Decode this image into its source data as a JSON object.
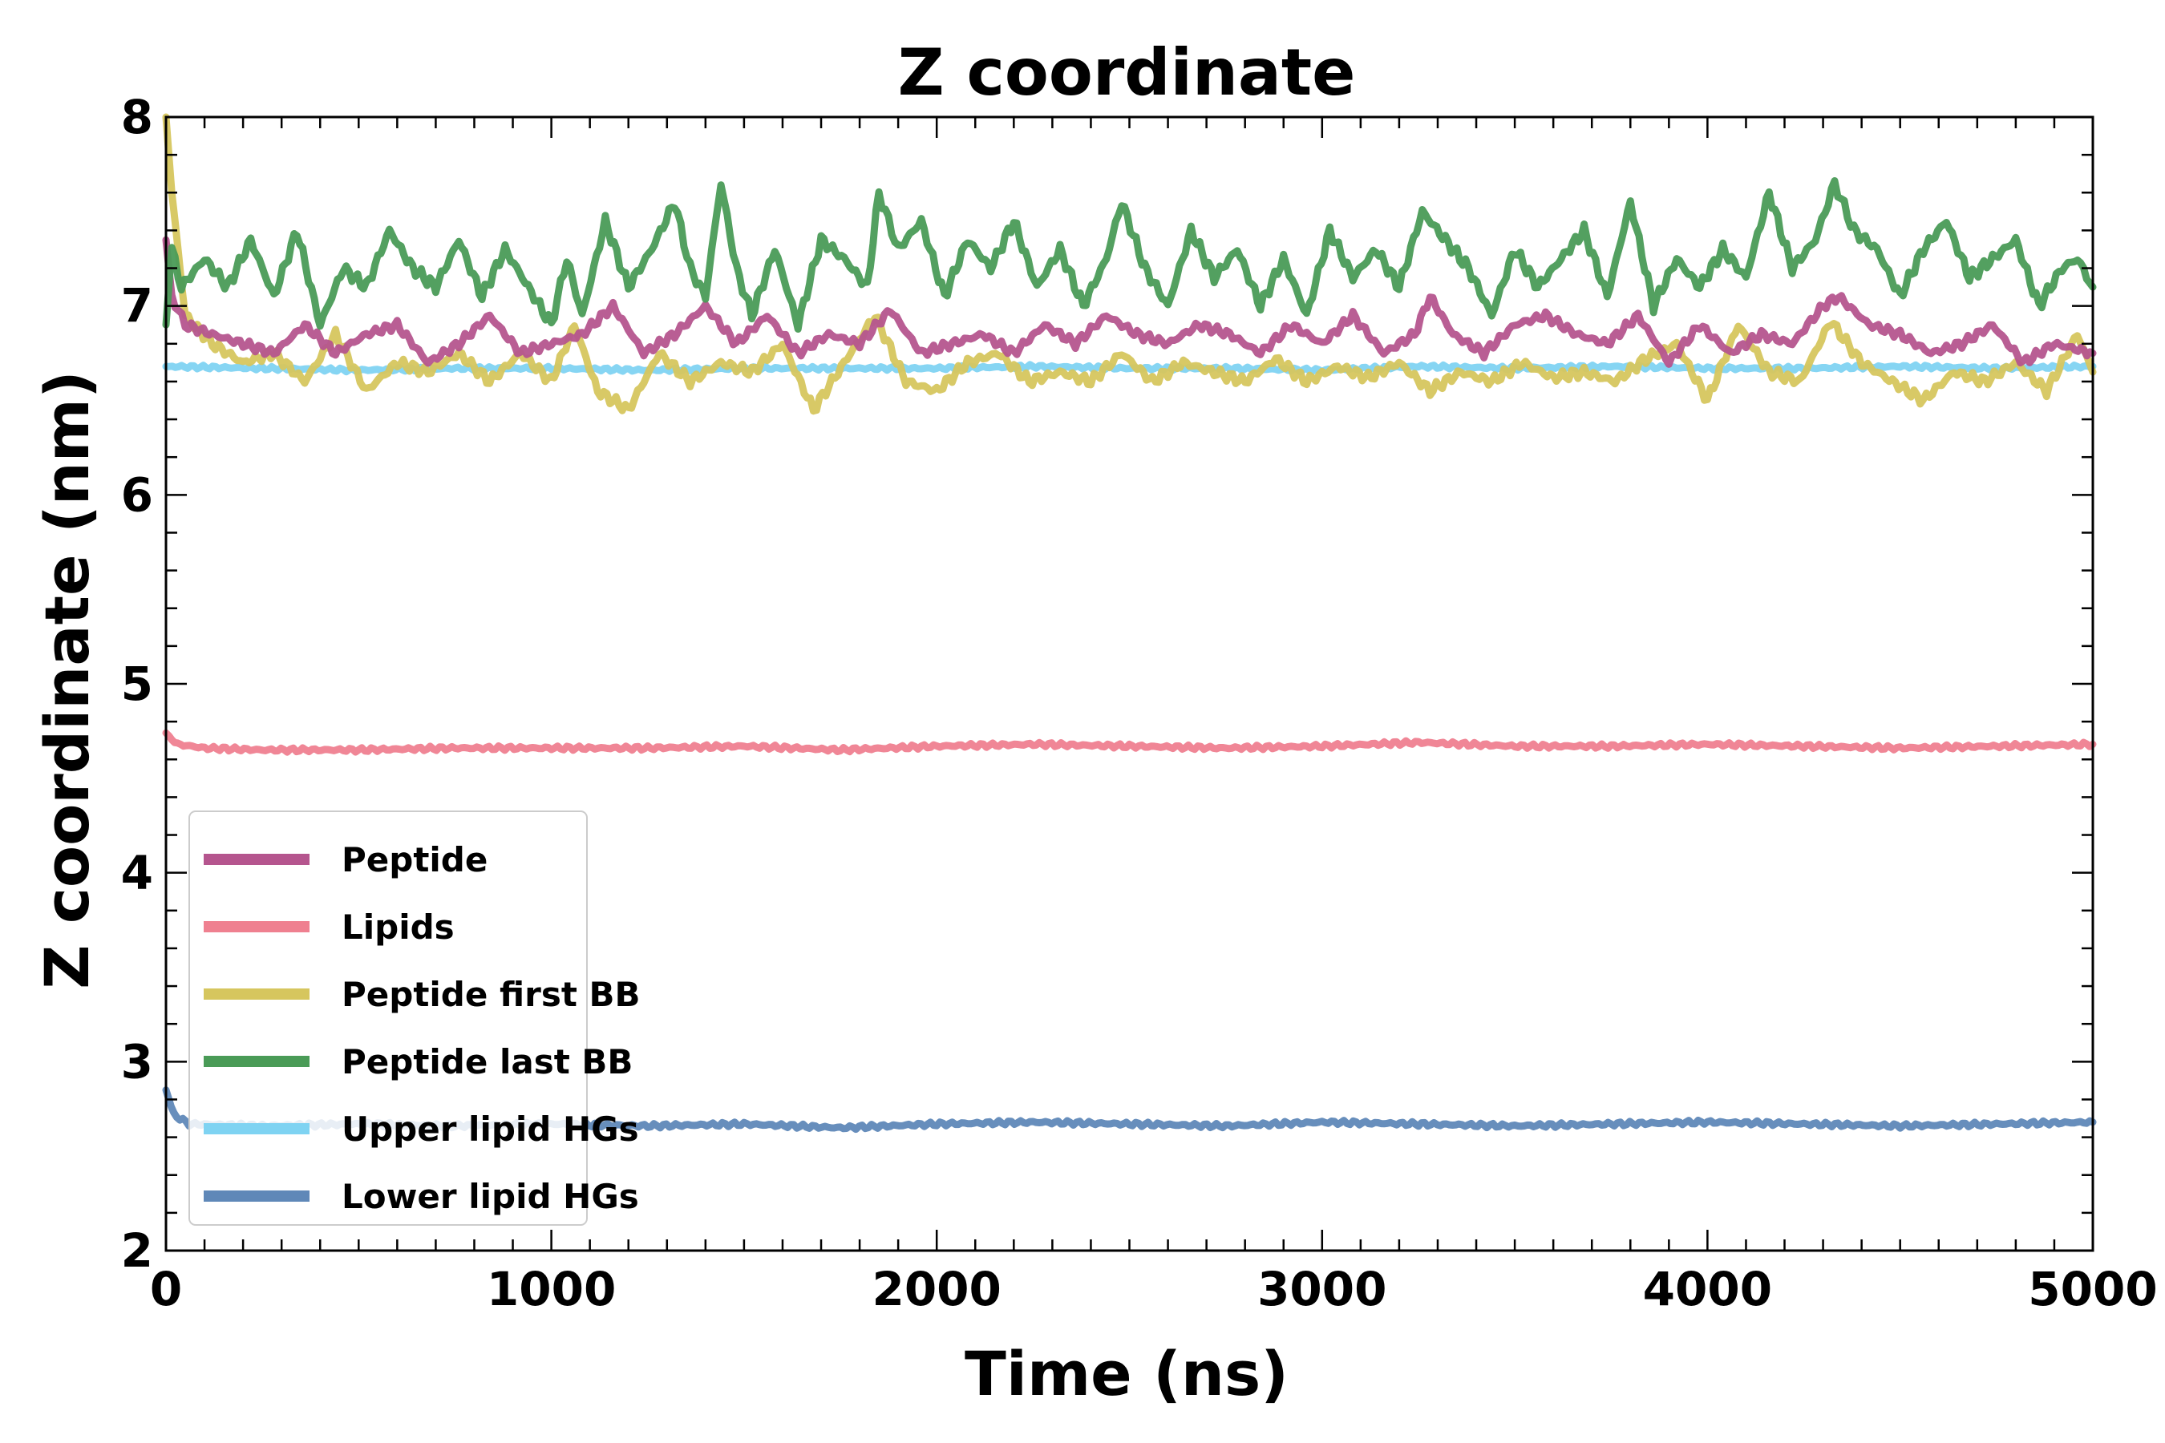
{
  "chart_data": {
    "type": "line",
    "title": "Z coordinate",
    "xlabel": "Time (ns)",
    "ylabel": "Z coordinate (nm)",
    "xlim": [
      0,
      5000
    ],
    "ylim": [
      2,
      8
    ],
    "xticks": [
      0,
      1000,
      2000,
      3000,
      4000,
      5000
    ],
    "yticks": [
      2,
      3,
      4,
      5,
      6,
      7,
      8
    ],
    "grid": false,
    "legend_position": "lower-left",
    "series": [
      {
        "name": "Upper lipid HGs",
        "color": "#7fd3f2",
        "x": [
          0,
          250,
          500,
          750,
          1000,
          1250,
          1500,
          1750,
          2000,
          2250,
          2500,
          2750,
          3000,
          3250,
          3500,
          3750,
          4000,
          4250,
          4500,
          4750,
          5000
        ],
        "y": [
          6.68,
          6.67,
          6.66,
          6.67,
          6.67,
          6.66,
          6.67,
          6.67,
          6.67,
          6.68,
          6.67,
          6.67,
          6.66,
          6.68,
          6.67,
          6.68,
          6.67,
          6.67,
          6.68,
          6.67,
          6.68
        ]
      },
      {
        "name": "Lower lipid HGs",
        "color": "#5f88b8",
        "x": [
          0,
          20,
          60,
          250,
          500,
          750,
          1000,
          1250,
          1500,
          1750,
          2000,
          2250,
          2500,
          2750,
          3000,
          3250,
          3500,
          3750,
          4000,
          4250,
          4500,
          4750,
          5000
        ],
        "y": [
          2.85,
          2.72,
          2.67,
          2.66,
          2.67,
          2.66,
          2.67,
          2.66,
          2.67,
          2.65,
          2.67,
          2.68,
          2.67,
          2.66,
          2.68,
          2.67,
          2.66,
          2.67,
          2.68,
          2.67,
          2.66,
          2.67,
          2.68
        ]
      },
      {
        "name": "Lipids",
        "color": "#ef8090",
        "x": [
          0,
          30,
          100,
          250,
          500,
          750,
          1000,
          1250,
          1500,
          1750,
          2000,
          2250,
          2500,
          2750,
          3000,
          3250,
          3500,
          3750,
          4000,
          4250,
          4500,
          4750,
          5000
        ],
        "y": [
          4.74,
          4.68,
          4.66,
          4.65,
          4.65,
          4.66,
          4.66,
          4.66,
          4.67,
          4.65,
          4.67,
          4.68,
          4.67,
          4.66,
          4.67,
          4.69,
          4.67,
          4.67,
          4.68,
          4.67,
          4.66,
          4.67,
          4.68
        ]
      },
      {
        "name": "Peptide first BB",
        "color": "#d6c65e",
        "x": [
          0,
          15,
          50,
          120,
          200,
          280,
          360,
          440,
          520,
          600,
          680,
          760,
          840,
          920,
          1000,
          1060,
          1120,
          1200,
          1280,
          1360,
          1440,
          1520,
          1600,
          1680,
          1760,
          1840,
          1920,
          2000,
          2080,
          2160,
          2240,
          2320,
          2400,
          2480,
          2560,
          2640,
          2720,
          2800,
          2880,
          2960,
          3040,
          3120,
          3200,
          3280,
          3360,
          3440,
          3520,
          3600,
          3680,
          3760,
          3840,
          3920,
          4000,
          4080,
          4160,
          4240,
          4320,
          4400,
          4480,
          4560,
          4640,
          4720,
          4800,
          4880,
          4960,
          5000
        ],
        "y": [
          8.0,
          7.6,
          6.95,
          6.8,
          6.7,
          6.75,
          6.6,
          6.85,
          6.55,
          6.7,
          6.65,
          6.75,
          6.6,
          6.75,
          6.6,
          6.9,
          6.55,
          6.45,
          6.75,
          6.6,
          6.7,
          6.65,
          6.8,
          6.45,
          6.7,
          6.95,
          6.6,
          6.55,
          6.7,
          6.75,
          6.6,
          6.65,
          6.6,
          6.75,
          6.6,
          6.7,
          6.65,
          6.6,
          6.72,
          6.6,
          6.68,
          6.62,
          6.7,
          6.55,
          6.65,
          6.6,
          6.7,
          6.62,
          6.65,
          6.6,
          6.72,
          6.8,
          6.5,
          6.9,
          6.65,
          6.6,
          6.92,
          6.7,
          6.6,
          6.5,
          6.65,
          6.6,
          6.7,
          6.55,
          6.85,
          6.65
        ]
      },
      {
        "name": "Peptide",
        "color": "#b5558e",
        "x": [
          0,
          15,
          50,
          120,
          200,
          280,
          360,
          440,
          520,
          600,
          680,
          760,
          840,
          920,
          1000,
          1080,
          1160,
          1240,
          1320,
          1400,
          1480,
          1560,
          1640,
          1720,
          1800,
          1880,
          1960,
          2040,
          2120,
          2200,
          2280,
          2360,
          2440,
          2520,
          2600,
          2680,
          2760,
          2840,
          2920,
          3000,
          3080,
          3160,
          3240,
          3280,
          3340,
          3420,
          3500,
          3580,
          3660,
          3740,
          3820,
          3900,
          3980,
          4060,
          4140,
          4220,
          4300,
          4340,
          4420,
          4500,
          4580,
          4660,
          4740,
          4820,
          4900,
          5000
        ],
        "y": [
          7.35,
          7.05,
          6.9,
          6.85,
          6.8,
          6.75,
          6.9,
          6.75,
          6.85,
          6.9,
          6.7,
          6.8,
          6.95,
          6.75,
          6.8,
          6.85,
          7.0,
          6.75,
          6.85,
          7.0,
          6.8,
          6.95,
          6.75,
          6.85,
          6.8,
          6.98,
          6.75,
          6.8,
          6.85,
          6.75,
          6.9,
          6.8,
          6.95,
          6.85,
          6.8,
          6.9,
          6.85,
          6.75,
          6.9,
          6.8,
          6.95,
          6.75,
          6.85,
          7.05,
          6.85,
          6.75,
          6.9,
          6.95,
          6.85,
          6.8,
          6.95,
          6.7,
          6.9,
          6.75,
          6.85,
          6.8,
          7.0,
          7.05,
          6.9,
          6.85,
          6.75,
          6.8,
          6.9,
          6.7,
          6.8,
          6.75
        ]
      },
      {
        "name": "Peptide last BB",
        "color": "#4a9b57",
        "x": [
          0,
          15,
          40,
          100,
          160,
          220,
          280,
          340,
          400,
          460,
          520,
          580,
          640,
          700,
          760,
          820,
          880,
          940,
          1000,
          1040,
          1080,
          1140,
          1200,
          1260,
          1320,
          1360,
          1400,
          1440,
          1480,
          1520,
          1580,
          1640,
          1700,
          1760,
          1820,
          1850,
          1900,
          1960,
          2020,
          2080,
          2140,
          2200,
          2260,
          2320,
          2380,
          2440,
          2480,
          2540,
          2600,
          2660,
          2720,
          2780,
          2840,
          2900,
          2960,
          3020,
          3080,
          3140,
          3200,
          3260,
          3320,
          3380,
          3440,
          3500,
          3560,
          3620,
          3680,
          3740,
          3800,
          3860,
          3920,
          3980,
          4040,
          4100,
          4160,
          4220,
          4280,
          4330,
          4380,
          4440,
          4500,
          4560,
          4620,
          4680,
          4740,
          4800,
          4860,
          4920,
          4960,
          5000
        ],
        "y": [
          6.9,
          7.3,
          7.1,
          7.25,
          7.1,
          7.35,
          7.05,
          7.4,
          6.9,
          7.2,
          7.1,
          7.4,
          7.2,
          7.1,
          7.35,
          7.05,
          7.3,
          7.1,
          6.9,
          7.25,
          6.95,
          7.45,
          7.1,
          7.3,
          7.55,
          7.2,
          7.05,
          7.65,
          7.2,
          6.95,
          7.3,
          6.9,
          7.35,
          7.25,
          7.1,
          7.6,
          7.3,
          7.45,
          7.05,
          7.35,
          7.2,
          7.45,
          7.1,
          7.3,
          7.0,
          7.25,
          7.55,
          7.2,
          7.0,
          7.4,
          7.15,
          7.3,
          7.0,
          7.25,
          6.95,
          7.4,
          7.15,
          7.3,
          7.1,
          7.5,
          7.35,
          7.2,
          6.95,
          7.3,
          7.1,
          7.25,
          7.4,
          7.05,
          7.55,
          7.0,
          7.25,
          7.1,
          7.3,
          7.15,
          7.6,
          7.2,
          7.35,
          7.65,
          7.4,
          7.3,
          7.05,
          7.3,
          7.45,
          7.15,
          7.25,
          7.35,
          7.0,
          7.2,
          7.25,
          7.1
        ]
      }
    ],
    "legend": [
      {
        "label": "Peptide",
        "color": "#b5558e"
      },
      {
        "label": "Lipids",
        "color": "#ef8090"
      },
      {
        "label": "Peptide first BB",
        "color": "#d6c65e"
      },
      {
        "label": "Peptide last BB",
        "color": "#4a9b57"
      },
      {
        "label": "Upper lipid HGs",
        "color": "#7fd3f2"
      },
      {
        "label": "Lower lipid HGs",
        "color": "#5f88b8"
      }
    ]
  }
}
